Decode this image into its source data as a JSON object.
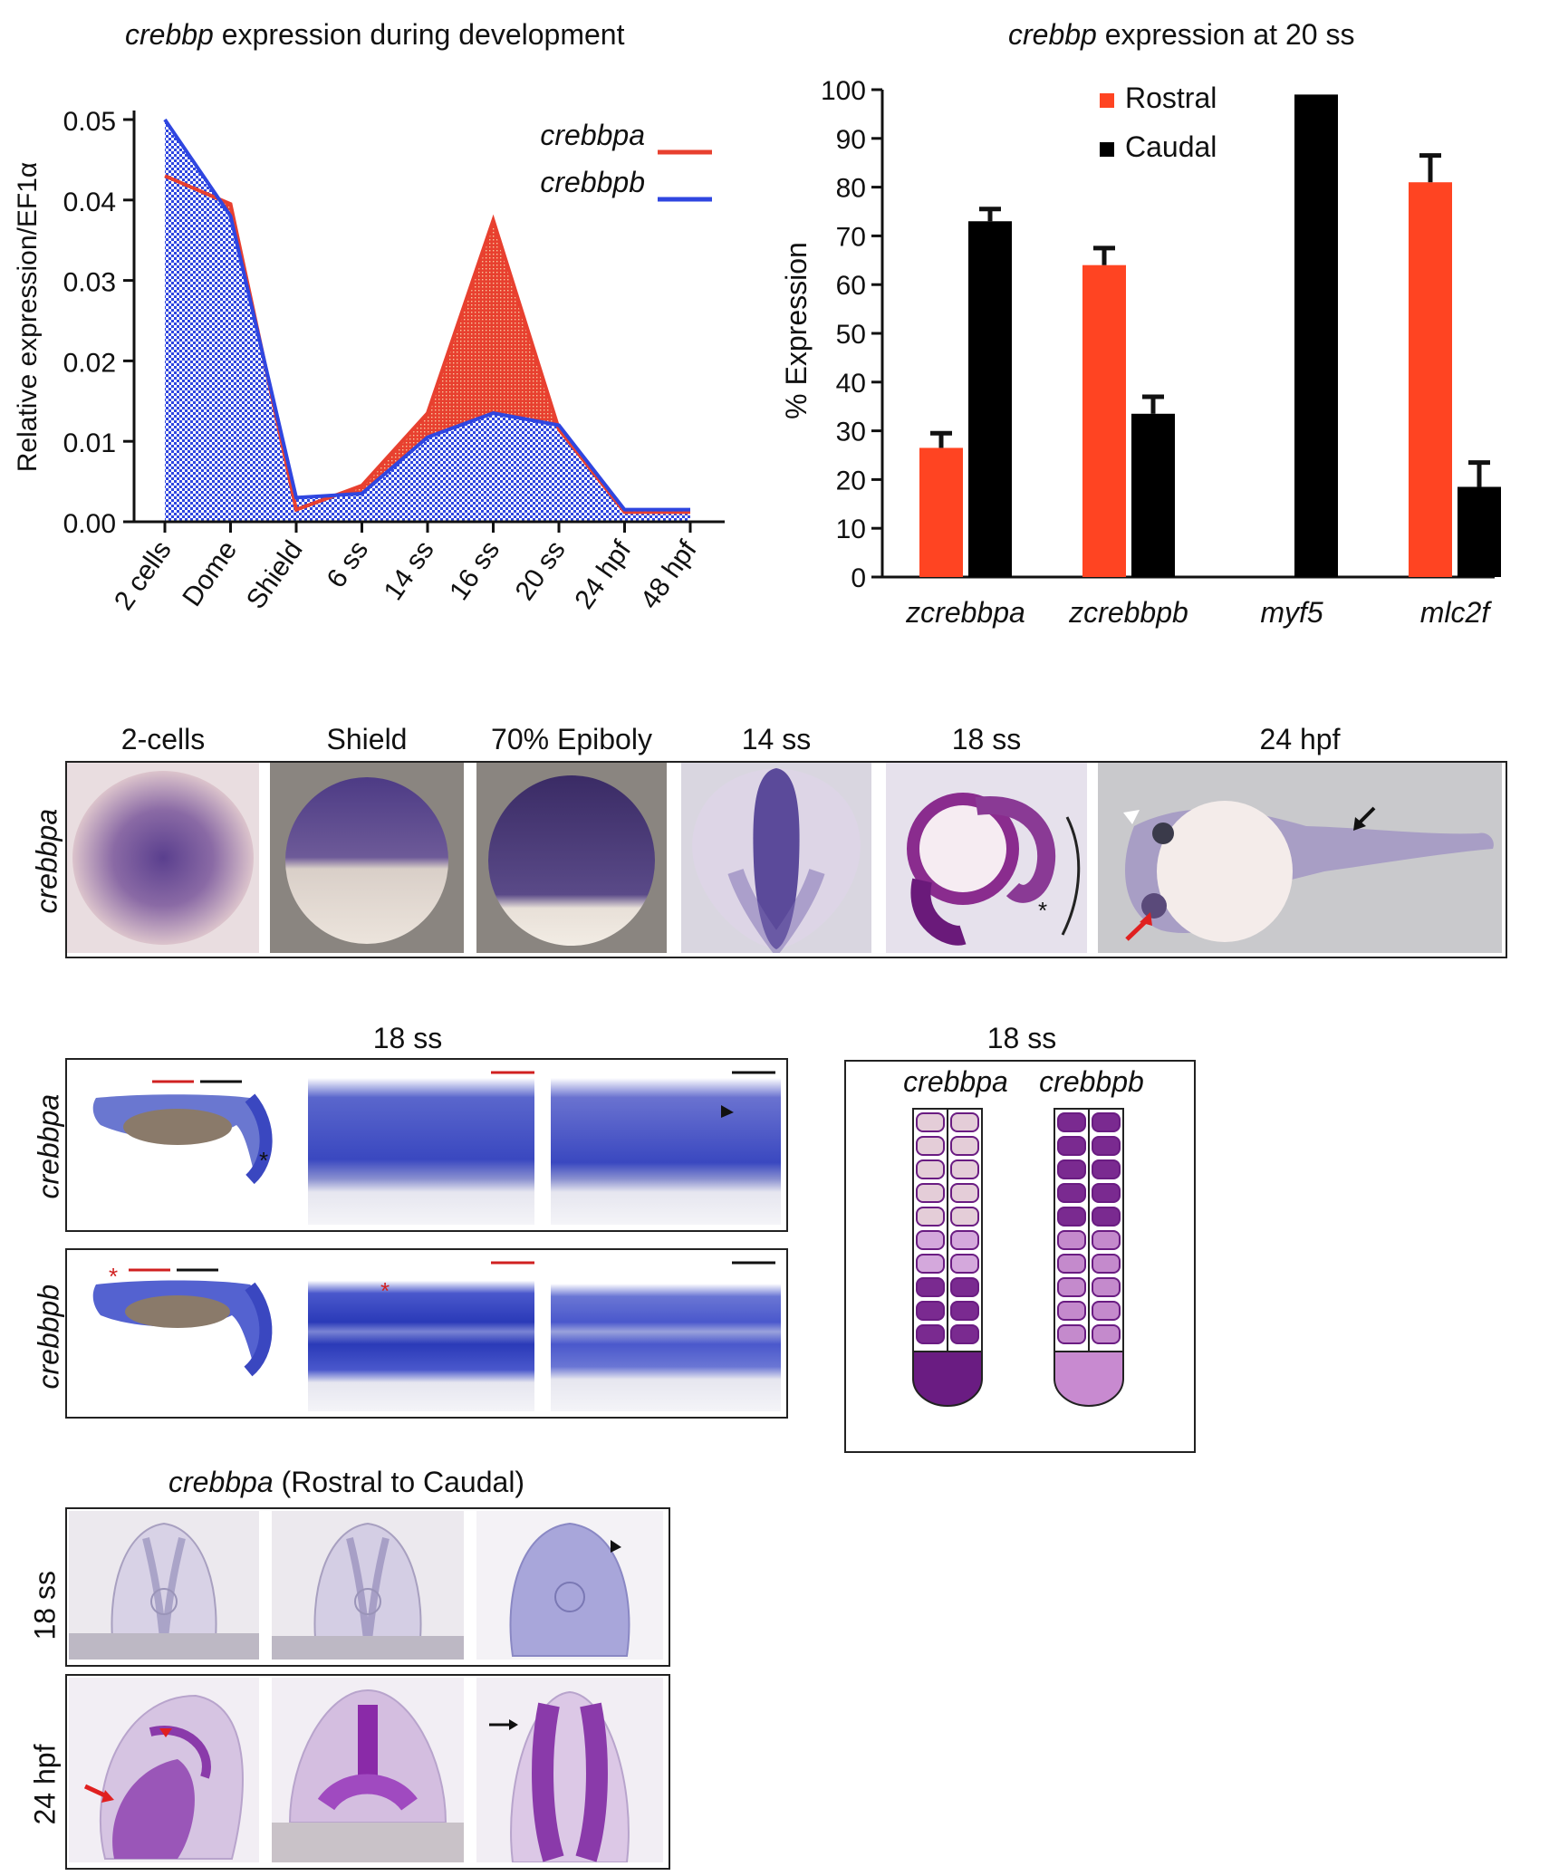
{
  "chartA": {
    "title_gene": "crebbp",
    "title_rest": " expression during development",
    "ylabel": "Relative expression/EF1α",
    "legend": [
      "crebbpa",
      "crebbpb"
    ],
    "colors": {
      "crebbpa": "#e8402f",
      "crebbpb": "#2f46e0"
    }
  },
  "chartB": {
    "title_gene": "crebbp",
    "title_rest": " expression at 20 ss",
    "ylabel": "% Expression",
    "legend": [
      "Rostral",
      "Caudal"
    ],
    "colors": {
      "Rostral": "#ff4422",
      "Caudal": "#000000"
    }
  },
  "chart_data": [
    {
      "type": "area",
      "ylabel": "Relative expression/EF1α",
      "ylim": [
        0,
        0.05
      ],
      "yticks": [
        "0.00",
        "0.01",
        "0.02",
        "0.03",
        "0.04",
        "0.05"
      ],
      "categories": [
        "2 cells",
        "Dome",
        "Shield",
        "6 ss",
        "14 ss",
        "16 ss",
        "20 ss",
        "24 hpf",
        "48 hpf"
      ],
      "series": [
        {
          "name": "crebbpa",
          "values": [
            0.043,
            0.0395,
            0.0015,
            0.0045,
            0.0135,
            0.0375,
            0.0115,
            0.0012,
            0.0012
          ]
        },
        {
          "name": "crebbpb",
          "values": [
            0.05,
            0.038,
            0.003,
            0.0035,
            0.0105,
            0.0135,
            0.012,
            0.0015,
            0.0015
          ]
        }
      ],
      "legend_position": "top-right"
    },
    {
      "type": "bar",
      "ylabel": "% Expression",
      "ylim": [
        0,
        100
      ],
      "yticks": [
        "0",
        "10",
        "20",
        "30",
        "40",
        "50",
        "60",
        "70",
        "80",
        "90",
        "100"
      ],
      "categories": [
        "zcrebbpa",
        "zcrebbpb",
        "myf5",
        "mlc2f"
      ],
      "series": [
        {
          "name": "Rostral",
          "values": [
            26.5,
            64,
            0,
            81
          ],
          "errors": [
            3,
            3.5,
            0,
            5.5
          ]
        },
        {
          "name": "Caudal",
          "values": [
            73,
            33.5,
            99,
            18.5
          ],
          "errors": [
            2.5,
            3.5,
            0,
            5
          ]
        }
      ],
      "legend_position": "top-right"
    }
  ],
  "panelC": {
    "stages": [
      "2-cells",
      "Shield",
      "70% Epiboly",
      "14 ss",
      "18 ss",
      "24 hpf"
    ],
    "row_label": "crebbpa",
    "asterisk": "*"
  },
  "panelD": {
    "stage": "18 ss",
    "rows": [
      "crebbpa",
      "crebbpb"
    ],
    "asterisk": "*"
  },
  "panelE": {
    "stage": "18 ss",
    "columns": [
      "crebbpa",
      "crebbpb"
    ]
  },
  "panelF": {
    "title_gene": "crebbpa",
    "title_rest": " (Rostral to Caudal)",
    "rows": [
      "18 ss",
      "24 hpf"
    ]
  }
}
